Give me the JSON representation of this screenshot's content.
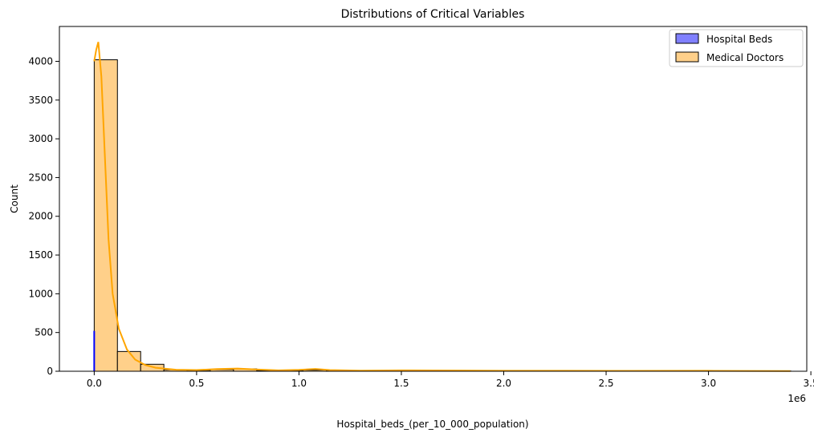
{
  "chart_data": {
    "type": "histogram",
    "title": "Distributions of Critical Variables",
    "xlabel": "Hospital_beds_(per_10_000_population)",
    "ylabel": "Count",
    "x_offset_label": "1e6",
    "xlim": [
      -0.17,
      3.48
    ],
    "ylim": [
      0,
      4450
    ],
    "x_ticks": [
      0.0,
      0.5,
      1.0,
      1.5,
      2.0,
      2.5,
      3.0,
      3.5
    ],
    "x_tick_labels": [
      "0.0",
      "0.5",
      "1.0",
      "1.5",
      "2.0",
      "2.5",
      "3.0",
      "3.5"
    ],
    "y_ticks": [
      0,
      500,
      1000,
      1500,
      2000,
      2500,
      3000,
      3500,
      4000
    ],
    "y_tick_labels": [
      "0",
      "500",
      "1000",
      "1500",
      "2000",
      "2500",
      "3000",
      "3500",
      "4000"
    ],
    "legend_position": "top-right",
    "series": [
      {
        "name": "Hospital Beds",
        "fill": "#8080ff",
        "line": "#0000ff",
        "bin_width": 0.0042,
        "bins": [
          {
            "start": 0.0,
            "count": 520
          },
          {
            "start": 0.0042,
            "count": 180
          },
          {
            "start": 0.0084,
            "count": 40
          }
        ]
      },
      {
        "name": "Medical Doctors",
        "fill": "#ffd08a",
        "line": "#ffa500",
        "bin_width": 0.1134,
        "bins": [
          {
            "start": 0.0,
            "count": 4020
          },
          {
            "start": 0.1134,
            "count": 255
          },
          {
            "start": 0.2268,
            "count": 90
          },
          {
            "start": 0.3402,
            "count": 20
          },
          {
            "start": 0.4536,
            "count": 12
          },
          {
            "start": 0.567,
            "count": 22
          },
          {
            "start": 0.6804,
            "count": 30
          },
          {
            "start": 0.7938,
            "count": 10
          },
          {
            "start": 0.9072,
            "count": 5
          },
          {
            "start": 1.0206,
            "count": 15
          },
          {
            "start": 1.134,
            "count": 6
          },
          {
            "start": 1.2474,
            "count": 4
          },
          {
            "start": 1.3608,
            "count": 5
          },
          {
            "start": 1.4742,
            "count": 8
          },
          {
            "start": 1.5876,
            "count": 7
          },
          {
            "start": 1.701,
            "count": 6
          },
          {
            "start": 1.8144,
            "count": 5
          },
          {
            "start": 1.9278,
            "count": 5
          },
          {
            "start": 2.0412,
            "count": 4
          },
          {
            "start": 2.1546,
            "count": 4
          },
          {
            "start": 2.268,
            "count": 3
          },
          {
            "start": 2.3814,
            "count": 3
          },
          {
            "start": 2.4948,
            "count": 4
          },
          {
            "start": 2.6082,
            "count": 3
          },
          {
            "start": 2.7216,
            "count": 3
          },
          {
            "start": 2.835,
            "count": 3
          },
          {
            "start": 2.9484,
            "count": 4
          },
          {
            "start": 3.0618,
            "count": 3
          },
          {
            "start": 3.1752,
            "count": 2
          },
          {
            "start": 3.2886,
            "count": 3
          }
        ],
        "kde": [
          {
            "x": 0.0,
            "y": 4000
          },
          {
            "x": 0.01,
            "y": 4150
          },
          {
            "x": 0.02,
            "y": 4250
          },
          {
            "x": 0.035,
            "y": 3800
          },
          {
            "x": 0.05,
            "y": 2900
          },
          {
            "x": 0.07,
            "y": 1700
          },
          {
            "x": 0.09,
            "y": 1000
          },
          {
            "x": 0.12,
            "y": 550
          },
          {
            "x": 0.16,
            "y": 280
          },
          {
            "x": 0.2,
            "y": 150
          },
          {
            "x": 0.25,
            "y": 80
          },
          {
            "x": 0.3,
            "y": 45
          },
          {
            "x": 0.4,
            "y": 20
          },
          {
            "x": 0.5,
            "y": 15
          },
          {
            "x": 0.6,
            "y": 28
          },
          {
            "x": 0.7,
            "y": 35
          },
          {
            "x": 0.8,
            "y": 22
          },
          {
            "x": 0.9,
            "y": 12
          },
          {
            "x": 1.0,
            "y": 18
          },
          {
            "x": 1.08,
            "y": 30
          },
          {
            "x": 1.15,
            "y": 15
          },
          {
            "x": 1.3,
            "y": 8
          },
          {
            "x": 1.5,
            "y": 12
          },
          {
            "x": 1.8,
            "y": 9
          },
          {
            "x": 2.0,
            "y": 7
          },
          {
            "x": 2.3,
            "y": 6
          },
          {
            "x": 2.6,
            "y": 5
          },
          {
            "x": 3.0,
            "y": 6
          },
          {
            "x": 3.2,
            "y": 4
          },
          {
            "x": 3.4,
            "y": 3
          }
        ]
      }
    ]
  }
}
